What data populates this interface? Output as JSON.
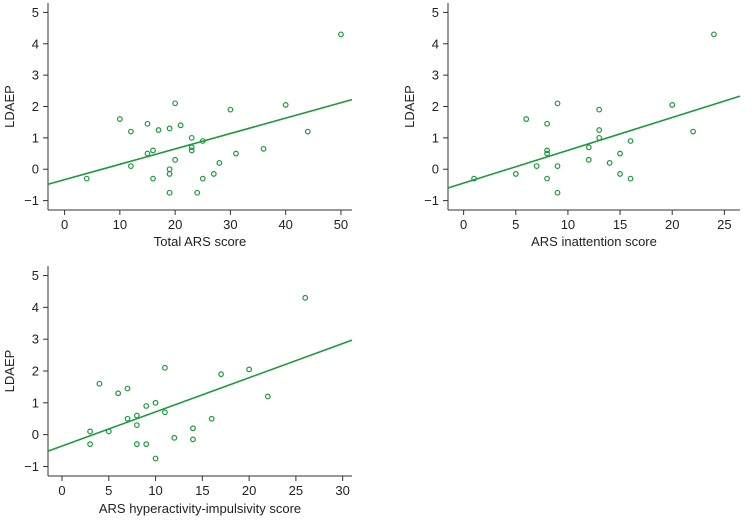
{
  "chart_data": [
    {
      "type": "scatter",
      "xlabel": "Total ARS score",
      "ylabel": "LDAEP",
      "xlim": [
        -3,
        52
      ],
      "ylim": [
        -1.3,
        5.3
      ],
      "xticks": [
        0,
        10,
        20,
        30,
        40,
        50
      ],
      "yticks": [
        -1,
        0,
        1,
        2,
        3,
        4,
        5
      ],
      "marker_color": "#1a9a3a",
      "line_color": "#1a9a3a",
      "points": [
        {
          "x": 4,
          "y": -0.3
        },
        {
          "x": 10,
          "y": 1.6
        },
        {
          "x": 12,
          "y": 1.2
        },
        {
          "x": 12,
          "y": 0.1
        },
        {
          "x": 15,
          "y": 1.45
        },
        {
          "x": 15,
          "y": 0.5
        },
        {
          "x": 16,
          "y": 0.6
        },
        {
          "x": 16,
          "y": -0.3
        },
        {
          "x": 17,
          "y": 1.25
        },
        {
          "x": 19,
          "y": 1.3
        },
        {
          "x": 19,
          "y": 0.0
        },
        {
          "x": 19,
          "y": -0.15
        },
        {
          "x": 19,
          "y": -0.75
        },
        {
          "x": 20,
          "y": 2.1
        },
        {
          "x": 20,
          "y": 0.3
        },
        {
          "x": 21,
          "y": 1.4
        },
        {
          "x": 23,
          "y": 1.0
        },
        {
          "x": 23,
          "y": 0.7
        },
        {
          "x": 23,
          "y": 0.6
        },
        {
          "x": 24,
          "y": -0.75
        },
        {
          "x": 25,
          "y": 0.9
        },
        {
          "x": 25,
          "y": -0.3
        },
        {
          "x": 27,
          "y": -0.15
        },
        {
          "x": 28,
          "y": 0.2
        },
        {
          "x": 30,
          "y": 1.9
        },
        {
          "x": 31,
          "y": 0.5
        },
        {
          "x": 36,
          "y": 0.65
        },
        {
          "x": 40,
          "y": 2.05
        },
        {
          "x": 44,
          "y": 1.2
        },
        {
          "x": 50,
          "y": 4.3
        }
      ],
      "fit_line": {
        "x": [
          -3,
          52
        ],
        "y": [
          -0.48,
          2.22
        ]
      }
    },
    {
      "type": "scatter",
      "xlabel": "ARS inattention score",
      "ylabel": "LDAEP",
      "xlim": [
        -1.5,
        26.5
      ],
      "ylim": [
        -1.3,
        5.3
      ],
      "xticks": [
        0,
        5,
        10,
        15,
        20,
        25
      ],
      "yticks": [
        -1,
        0,
        1,
        2,
        3,
        4,
        5
      ],
      "marker_color": "#1a9a3a",
      "line_color": "#1a9a3a",
      "points": [
        {
          "x": 1,
          "y": -0.3
        },
        {
          "x": 5,
          "y": -0.15
        },
        {
          "x": 6,
          "y": 1.6
        },
        {
          "x": 7,
          "y": 0.1
        },
        {
          "x": 8,
          "y": 1.45
        },
        {
          "x": 8,
          "y": 0.6
        },
        {
          "x": 8,
          "y": 0.5
        },
        {
          "x": 8,
          "y": -0.3
        },
        {
          "x": 9,
          "y": 2.1
        },
        {
          "x": 9,
          "y": 0.1
        },
        {
          "x": 9,
          "y": -0.75
        },
        {
          "x": 12,
          "y": 0.7
        },
        {
          "x": 12,
          "y": 0.3
        },
        {
          "x": 13,
          "y": 1.9
        },
        {
          "x": 13,
          "y": 1.25
        },
        {
          "x": 13,
          "y": 1.0
        },
        {
          "x": 14,
          "y": 0.2
        },
        {
          "x": 15,
          "y": 0.5
        },
        {
          "x": 15,
          "y": -0.15
        },
        {
          "x": 16,
          "y": 0.9
        },
        {
          "x": 16,
          "y": -0.3
        },
        {
          "x": 20,
          "y": 2.05
        },
        {
          "x": 22,
          "y": 1.2
        },
        {
          "x": 24,
          "y": 4.3
        }
      ],
      "fit_line": {
        "x": [
          -1.5,
          26.5
        ],
        "y": [
          -0.6,
          2.33
        ]
      }
    },
    {
      "type": "scatter",
      "xlabel": "ARS hyperactivity-impulsivity score",
      "ylabel": "LDAEP",
      "xlim": [
        -1.5,
        31
      ],
      "ylim": [
        -1.3,
        5.3
      ],
      "xticks": [
        0,
        5,
        10,
        15,
        20,
        25,
        30
      ],
      "yticks": [
        -1,
        0,
        1,
        2,
        3,
        4,
        5
      ],
      "marker_color": "#1a9a3a",
      "line_color": "#1a9a3a",
      "points": [
        {
          "x": 3,
          "y": 0.1
        },
        {
          "x": 3,
          "y": -0.3
        },
        {
          "x": 4,
          "y": 1.6
        },
        {
          "x": 5,
          "y": 0.1
        },
        {
          "x": 6,
          "y": 1.3
        },
        {
          "x": 7,
          "y": 1.45
        },
        {
          "x": 7,
          "y": 0.5
        },
        {
          "x": 8,
          "y": 0.6
        },
        {
          "x": 8,
          "y": 0.3
        },
        {
          "x": 8,
          "y": -0.3
        },
        {
          "x": 9,
          "y": 0.9
        },
        {
          "x": 9,
          "y": -0.3
        },
        {
          "x": 10,
          "y": 1.0
        },
        {
          "x": 10,
          "y": -0.75
        },
        {
          "x": 11,
          "y": 2.1
        },
        {
          "x": 11,
          "y": 0.7
        },
        {
          "x": 12,
          "y": -0.1
        },
        {
          "x": 14,
          "y": 0.2
        },
        {
          "x": 14,
          "y": -0.15
        },
        {
          "x": 16,
          "y": 0.5
        },
        {
          "x": 17,
          "y": 1.9
        },
        {
          "x": 20,
          "y": 2.05
        },
        {
          "x": 22,
          "y": 1.2
        },
        {
          "x": 26,
          "y": 4.3
        }
      ],
      "fit_line": {
        "x": [
          -1.5,
          31
        ],
        "y": [
          -0.52,
          2.97
        ]
      }
    }
  ]
}
